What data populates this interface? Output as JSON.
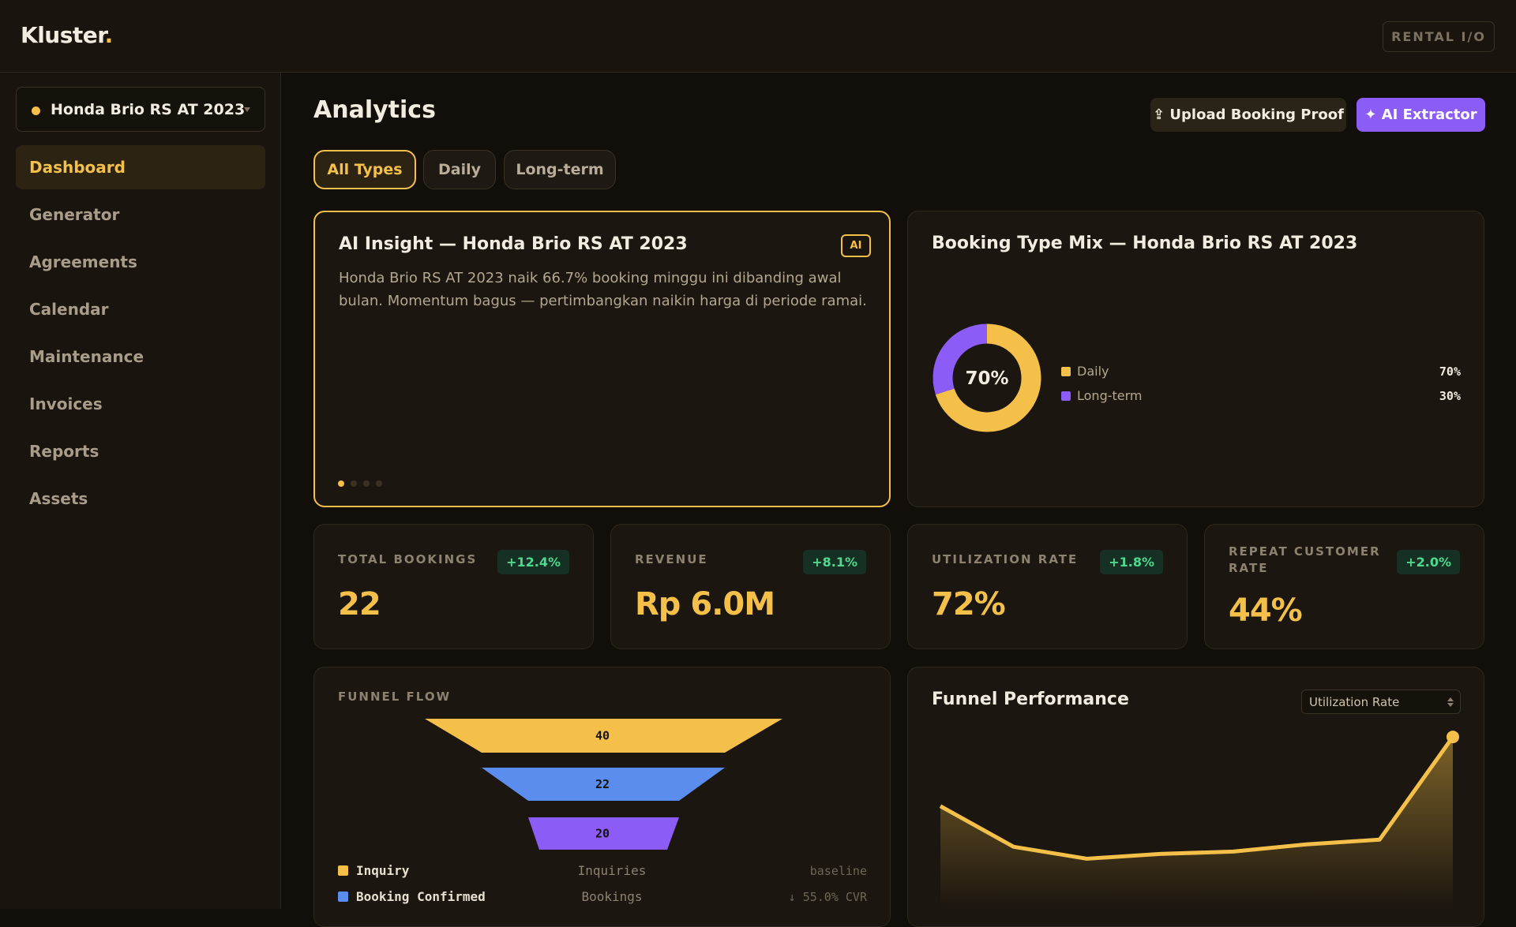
{
  "header": {
    "brand": "Kluster",
    "brand_dot": ".",
    "mode_button": "RENTAL I/O"
  },
  "sidebar": {
    "vehicle": "Honda Brio RS AT 2023",
    "nav": [
      "Dashboard",
      "Generator",
      "Agreements",
      "Calendar",
      "Maintenance",
      "Invoices",
      "Reports",
      "Assets"
    ]
  },
  "main": {
    "title": "Analytics",
    "actions": [
      "⇪ Upload Booking Proof",
      "✦ AI Extractor"
    ],
    "tabs": [
      "All Types",
      "Daily",
      "Long-term"
    ],
    "insight": {
      "title": "AI Insight — Honda Brio RS AT 2023",
      "badge": "AI",
      "text": "Honda Brio RS AT 2023 naik 66.7% booking minggu ini dibanding awal bulan. Momentum bagus — pertimbangkan naikin harga di periode ramai."
    },
    "kpis": [
      {
        "label": "TOTAL BOOKINGS",
        "delta": "+12.4%",
        "value": "22"
      },
      {
        "label": "REVENUE",
        "delta": "+8.1%",
        "value": "Rp 6.0M"
      },
      {
        "label": "UTILIZATION RATE",
        "delta": "+1.8%",
        "value": "72%"
      },
      {
        "label": "REPEAT CUSTOMER RATE",
        "delta": "+2.0%",
        "value": "44%"
      }
    ]
  },
  "chart_data": [
    {
      "type": "pie",
      "title": "Booking Type Mix — Honda Brio RS AT 2023",
      "categories": [
        "Daily",
        "Long-term"
      ],
      "values": [
        70,
        30
      ],
      "value_labels": [
        "70%",
        "30%"
      ],
      "colors": [
        "#f5c04a",
        "#8b5cf6"
      ]
    },
    {
      "type": "funnel",
      "title": "FUNNEL FLOW",
      "categories": [
        "Inquiry",
        "Booking Confirmed",
        null
      ],
      "stage_labels": [
        "Inquiries",
        "Bookings",
        null
      ],
      "notes": [
        "baseline",
        "↓ 55.0% CVR",
        null
      ],
      "values": [
        40,
        22,
        20
      ],
      "colors": [
        "#f5c04a",
        "#5b8def",
        "#8b5cf6"
      ]
    },
    {
      "type": "line",
      "title": "Funnel Performance",
      "selector": "Utilization Rate",
      "values": [
        43,
        26,
        21,
        23,
        24,
        27,
        29,
        72
      ],
      "ylim": [
        0,
        75
      ],
      "color": "#f5c04a"
    }
  ]
}
